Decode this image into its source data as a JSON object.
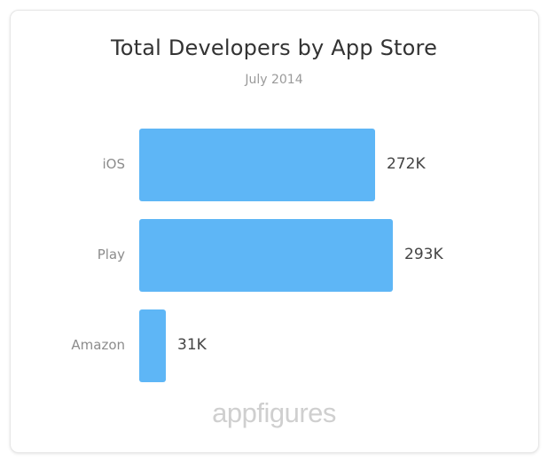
{
  "chart_data": {
    "type": "bar",
    "orientation": "horizontal",
    "title": "Total Developers by App Store",
    "subtitle": "July 2014",
    "categories": [
      "iOS",
      "Play",
      "Amazon"
    ],
    "values": [
      272,
      293,
      31
    ],
    "value_labels": [
      "272K",
      "293K",
      "31K"
    ],
    "unit": "K",
    "grid": false,
    "legend": "none",
    "bar_color": "#5eb6f6"
  },
  "brand": {
    "logo_text": "appfigures"
  }
}
